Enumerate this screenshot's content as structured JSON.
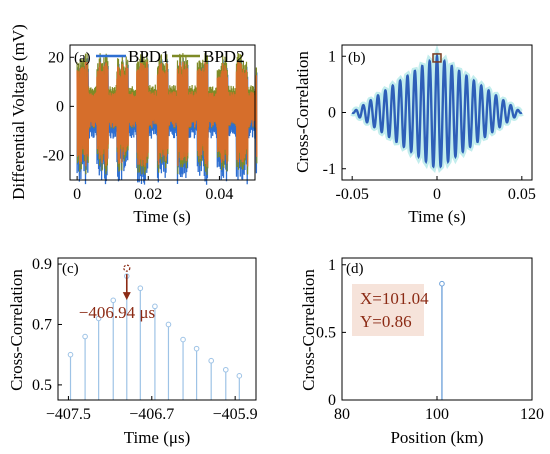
{
  "chart_data": [
    {
      "panel": "(a)",
      "type": "line",
      "xlabel": "Time (s)",
      "ylabel": "Differential Voltage  (mV)",
      "xlim": [
        -0.002,
        0.05
      ],
      "ylim": [
        -30,
        25
      ],
      "xticks": [
        0,
        0.02,
        0.04
      ],
      "xtick_labels": [
        "0",
        "0.02",
        "0.04"
      ],
      "yticks": [
        20,
        0,
        -20
      ],
      "ytick_labels": [
        "20",
        "0",
        "-20"
      ],
      "legend": "top (inside)",
      "series": [
        {
          "name": "BPD1",
          "color": "#2e6fd1",
          "amplitude": 20,
          "period": 0.0056
        },
        {
          "name": "BPD2",
          "color": "#7e8a26",
          "amplitude": 20,
          "period": 0.0056
        }
      ],
      "fill_color": "#e06a2c",
      "cycles": 9
    },
    {
      "panel": "(b)",
      "type": "line",
      "xlabel": "Time (s)",
      "ylabel": "Cross-Correlation",
      "xlim": [
        -0.056,
        0.056
      ],
      "ylim": [
        -1.2,
        1.2
      ],
      "xticks": [
        -0.05,
        0,
        0.05
      ],
      "xtick_labels": [
        "-0.05",
        "0",
        "0.05"
      ],
      "yticks": [
        1,
        0,
        -1
      ],
      "ytick_labels": [
        "1",
        "0",
        "-1"
      ],
      "span": 0.05,
      "cycles": 23,
      "peak": {
        "x": 0,
        "y": 0.97
      },
      "color": "#2e5fb8",
      "glow": "#a8e6e6"
    },
    {
      "panel": "(c)",
      "type": "stem",
      "xlabel": "Time (μs)",
      "ylabel": "Cross-Correlation",
      "xlim": [
        -407.6,
        -405.7
      ],
      "ylim": [
        0.45,
        0.92
      ],
      "xticks": [
        -407.5,
        -406.7,
        -405.9
      ],
      "xtick_labels": [
        "−407.5",
        "−406.7",
        "−405.9"
      ],
      "yticks": [
        0.9,
        0.7,
        0.5
      ],
      "ytick_labels": [
        "0.9",
        "0.7",
        "0.5"
      ],
      "x": [
        -407.48,
        -407.34,
        -407.21,
        -407.07,
        -406.94,
        -406.81,
        -406.67,
        -406.54,
        -406.4,
        -406.27,
        -406.13,
        -405.99,
        -405.86
      ],
      "y": [
        0.6,
        0.66,
        0.72,
        0.78,
        0.86,
        0.82,
        0.76,
        0.7,
        0.65,
        0.62,
        0.58,
        0.55,
        0.53
      ],
      "annotation": "−406.94 μs",
      "color": "#9ec3e6"
    },
    {
      "panel": "(d)",
      "type": "stem",
      "xlabel": "Position (km)",
      "ylabel": "Cross-Correlation",
      "xlim": [
        80,
        120
      ],
      "ylim": [
        0,
        1.05
      ],
      "xticks": [
        80,
        100,
        120
      ],
      "xtick_labels": [
        "80",
        "100",
        "120"
      ],
      "yticks": [
        1,
        0.5,
        0
      ],
      "ytick_labels": [
        "1",
        "0.5",
        "0"
      ],
      "x": [
        101.04
      ],
      "y": [
        0.86
      ],
      "datatip": {
        "x_text": "X=101.04",
        "y_text": "Y=0.86"
      },
      "color": "#6a9fd8"
    }
  ]
}
